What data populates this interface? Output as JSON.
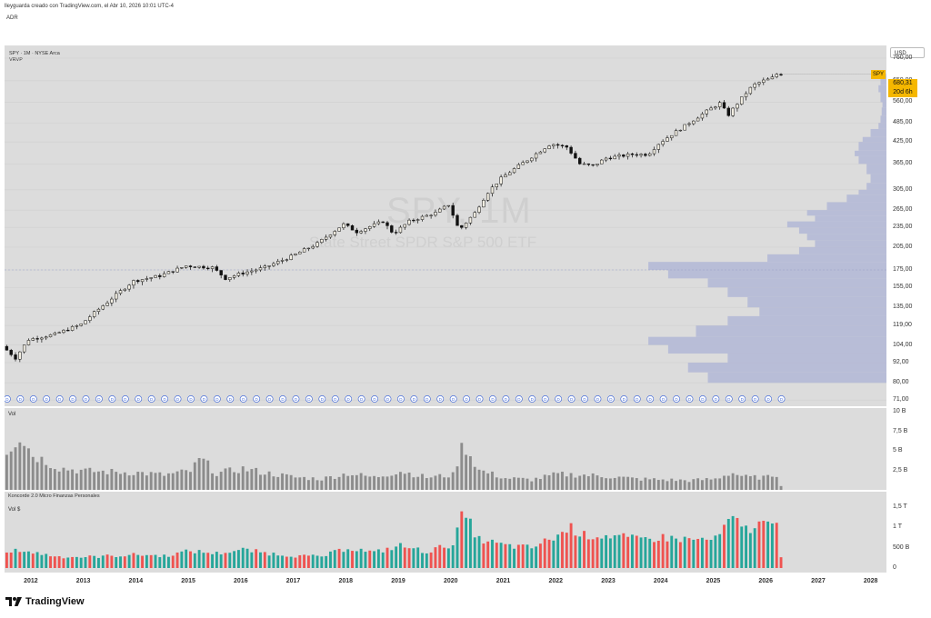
{
  "header": {
    "author_line": "lleyguarda creado con TradingView.com, el Abr 10, 2026 10:01 UTC-4",
    "tab_label": "ADR"
  },
  "main_pane": {
    "symbol_line": "SPY · 1M · NYSE Arca",
    "indicator_label": "VRVP",
    "watermark_symbol": "SPY, 1M",
    "watermark_name": "State Street SPDR S&P 500 ETF",
    "currency_button": "USD",
    "price_tag_symbol": "SPY",
    "price_tag_value": "680,31",
    "price_tag_countdown": "20d 6h",
    "y_ticks": [
      "760,00",
      "650,00",
      "560,00",
      "485,00",
      "425,00",
      "365,00",
      "305,00",
      "265,00",
      "235,00",
      "205,00",
      "175,00",
      "155,00",
      "135,00",
      "119,00",
      "104,00",
      "92,00",
      "80,00",
      "71,00"
    ],
    "dividend_marker": "D"
  },
  "volume_pane": {
    "label": "Vol",
    "y_ticks": [
      "10 B",
      "7,5 B",
      "5 B",
      "2,5 B"
    ]
  },
  "konc_pane": {
    "title": "Koncorde 2.0 Micro Finanzas Personales",
    "label": "Vol $",
    "y_ticks": [
      "1,5 T",
      "1 T",
      "500 B",
      "0"
    ]
  },
  "x_axis": [
    "2012",
    "2013",
    "2014",
    "2015",
    "2016",
    "2017",
    "2018",
    "2019",
    "2020",
    "2021",
    "2022",
    "2023",
    "2024",
    "2025",
    "2026",
    "2027",
    "2028"
  ],
  "footer": {
    "brand": "TradingView"
  },
  "colors": {
    "up": "#f2eee2",
    "down": "#111111",
    "vol_bar": "#8c8c8c",
    "konc_up": "#26a69a",
    "konc_down": "#ef5350",
    "vp": "#b4b9d6",
    "tag": "#f5b700"
  },
  "chart_data": {
    "type": "candlestick",
    "title": "SPY · 1M · NYSE Arca",
    "scale": "log",
    "ylim": [
      68,
      830
    ],
    "x_range": [
      2011.5,
      2028.3
    ],
    "price_anchors": [
      [
        2011.5,
        103
      ],
      [
        2011.75,
        95
      ],
      [
        2012.0,
        108
      ],
      [
        2012.5,
        112
      ],
      [
        2013.0,
        120
      ],
      [
        2013.5,
        140
      ],
      [
        2014.0,
        162
      ],
      [
        2014.5,
        168
      ],
      [
        2015.0,
        180
      ],
      [
        2015.5,
        178
      ],
      [
        2015.75,
        165
      ],
      [
        2016.0,
        170
      ],
      [
        2016.5,
        178
      ],
      [
        2017.0,
        192
      ],
      [
        2017.5,
        210
      ],
      [
        2018.0,
        240
      ],
      [
        2018.25,
        228
      ],
      [
        2018.75,
        245
      ],
      [
        2018.95,
        225
      ],
      [
        2019.25,
        245
      ],
      [
        2019.75,
        260
      ],
      [
        2020.0,
        275
      ],
      [
        2020.2,
        230
      ],
      [
        2020.5,
        260
      ],
      [
        2020.75,
        300
      ],
      [
        2021.0,
        330
      ],
      [
        2021.5,
        375
      ],
      [
        2021.95,
        420
      ],
      [
        2022.25,
        410
      ],
      [
        2022.5,
        365
      ],
      [
        2022.75,
        360
      ],
      [
        2023.0,
        380
      ],
      [
        2023.5,
        390
      ],
      [
        2023.8,
        390
      ],
      [
        2024.0,
        420
      ],
      [
        2024.5,
        475
      ],
      [
        2024.95,
        530
      ],
      [
        2025.2,
        560
      ],
      [
        2025.3,
        505
      ],
      [
        2025.6,
        580
      ],
      [
        2025.8,
        630
      ],
      [
        2026.0,
        650
      ],
      [
        2026.15,
        660
      ],
      [
        2026.25,
        680.31
      ]
    ],
    "volume_ylim": [
      0,
      10
    ],
    "volume_unit": "B",
    "volume_anchors": [
      [
        2011.5,
        5
      ],
      [
        2011.75,
        7
      ],
      [
        2012.0,
        4.5
      ],
      [
        2012.5,
        2.8
      ],
      [
        2013.0,
        2.4
      ],
      [
        2013.5,
        2.3
      ],
      [
        2014.0,
        2.2
      ],
      [
        2014.5,
        1.9
      ],
      [
        2015.0,
        2.4
      ],
      [
        2015.2,
        4
      ],
      [
        2015.5,
        2.1
      ],
      [
        2016.0,
        2.7
      ],
      [
        2016.5,
        2.1
      ],
      [
        2017.0,
        1.6
      ],
      [
        2017.5,
        1.4
      ],
      [
        2018.0,
        2.1
      ],
      [
        2018.5,
        1.6
      ],
      [
        2019.0,
        2.4
      ],
      [
        2019.5,
        1.6
      ],
      [
        2020.0,
        1.9
      ],
      [
        2020.2,
        6
      ],
      [
        2020.5,
        2.5
      ],
      [
        2021.0,
        1.5
      ],
      [
        2021.5,
        1.3
      ],
      [
        2022.0,
        2.0
      ],
      [
        2022.5,
        1.9
      ],
      [
        2023.0,
        1.7
      ],
      [
        2023.5,
        1.4
      ],
      [
        2024.0,
        1.3
      ],
      [
        2024.5,
        1.2
      ],
      [
        2025.0,
        1.4
      ],
      [
        2025.3,
        2.2
      ],
      [
        2025.6,
        1.6
      ],
      [
        2026.0,
        1.6
      ],
      [
        2026.15,
        2.2
      ],
      [
        2026.25,
        0.6
      ]
    ],
    "dollar_volume_ylim": [
      0,
      1.5
    ],
    "dollar_volume_unit": "T",
    "dollar_volume_anchors": [
      [
        2011.5,
        0.35
      ],
      [
        2011.75,
        0.45
      ],
      [
        2012.0,
        0.38
      ],
      [
        2012.5,
        0.28
      ],
      [
        2013.0,
        0.27
      ],
      [
        2013.5,
        0.3
      ],
      [
        2014.0,
        0.33
      ],
      [
        2014.5,
        0.3
      ],
      [
        2015.0,
        0.42
      ],
      [
        2015.5,
        0.36
      ],
      [
        2016.0,
        0.45
      ],
      [
        2016.5,
        0.36
      ],
      [
        2017.0,
        0.3
      ],
      [
        2017.5,
        0.28
      ],
      [
        2018.0,
        0.5
      ],
      [
        2018.5,
        0.38
      ],
      [
        2019.0,
        0.55
      ],
      [
        2019.5,
        0.4
      ],
      [
        2020.0,
        0.6
      ],
      [
        2020.2,
        1.35
      ],
      [
        2020.5,
        0.7
      ],
      [
        2021.0,
        0.55
      ],
      [
        2021.5,
        0.5
      ],
      [
        2022.0,
        0.8
      ],
      [
        2022.25,
        1.0
      ],
      [
        2022.5,
        0.8
      ],
      [
        2023.0,
        0.8
      ],
      [
        2023.5,
        0.7
      ],
      [
        2024.0,
        0.75
      ],
      [
        2024.5,
        0.7
      ],
      [
        2025.0,
        0.7
      ],
      [
        2025.3,
        1.2
      ],
      [
        2025.6,
        0.95
      ],
      [
        2025.9,
        1.1
      ],
      [
        2026.0,
        1.05
      ],
      [
        2026.15,
        1.45
      ],
      [
        2026.25,
        0.3
      ]
    ],
    "volume_profile": [
      [
        80,
        0.45
      ],
      [
        86,
        0.5
      ],
      [
        92,
        0.4
      ],
      [
        98,
        0.55
      ],
      [
        104,
        0.6
      ],
      [
        110,
        0.48
      ],
      [
        119,
        0.4
      ],
      [
        127,
        0.32
      ],
      [
        135,
        0.35
      ],
      [
        145,
        0.4
      ],
      [
        155,
        0.45
      ],
      [
        165,
        0.55
      ],
      [
        175,
        0.6
      ],
      [
        185,
        0.3
      ],
      [
        195,
        0.22
      ],
      [
        205,
        0.18
      ],
      [
        215,
        0.2
      ],
      [
        225,
        0.22
      ],
      [
        235,
        0.25
      ],
      [
        245,
        0.18
      ],
      [
        255,
        0.2
      ],
      [
        265,
        0.15
      ],
      [
        280,
        0.1
      ],
      [
        295,
        0.07
      ],
      [
        305,
        0.05
      ],
      [
        320,
        0.04
      ],
      [
        340,
        0.05
      ],
      [
        365,
        0.07
      ],
      [
        385,
        0.08
      ],
      [
        400,
        0.07
      ],
      [
        425,
        0.06
      ],
      [
        440,
        0.04
      ],
      [
        465,
        0.02
      ],
      [
        485,
        0.015
      ],
      [
        510,
        0.012
      ],
      [
        540,
        0.01
      ],
      [
        560,
        0.015
      ],
      [
        600,
        0.02
      ],
      [
        630,
        0.015
      ],
      [
        660,
        0.01
      ]
    ]
  }
}
